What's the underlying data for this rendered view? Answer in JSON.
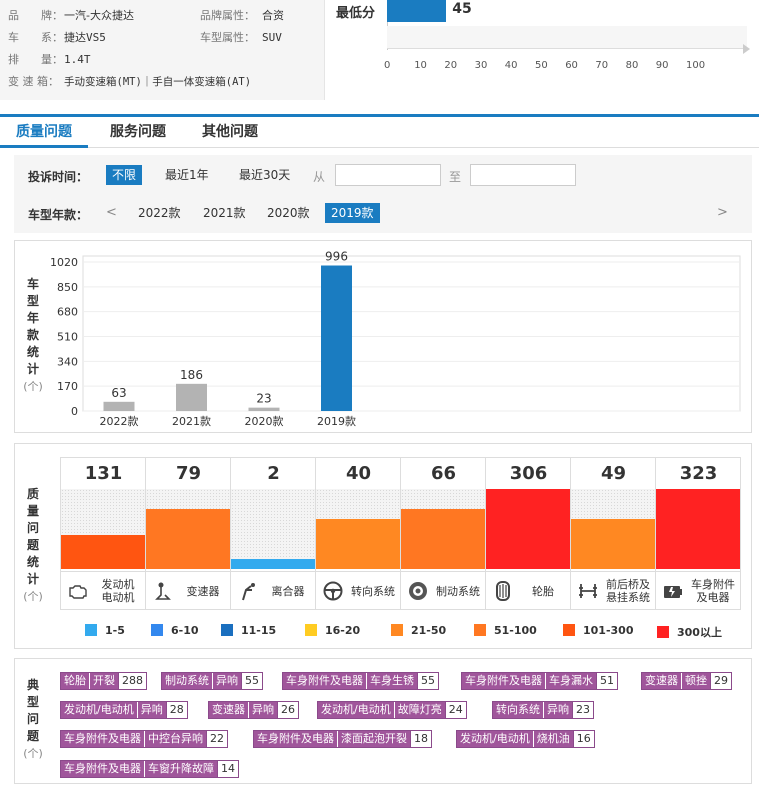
{
  "info": {
    "brand_label": "品　　牌：",
    "brand": "一汽-大众捷达",
    "brand_attr_label": "品牌属性：",
    "brand_attr": "合资",
    "series_label": "车　　系：",
    "series": "捷达VS5",
    "type_label": "车型属性：",
    "type": "SUV",
    "displacement_label": "排　　量：",
    "displacement": "1.4T",
    "gearbox_label": "变 速 箱：",
    "gearbox": "手动变速箱(MT)｜手自一体变速箱(AT)"
  },
  "score_chart": {
    "label": "最低分",
    "value": 45,
    "max": 100,
    "ticks": [
      "0",
      "10",
      "20",
      "30",
      "40",
      "50",
      "60",
      "70",
      "80",
      "90",
      "100"
    ],
    "color": "#1a7cc1"
  },
  "tabs": [
    "质量问题",
    "服务问题",
    "其他问题"
  ],
  "filters": {
    "time_label": "投诉时间：",
    "time_options": [
      "不限",
      "最近1年",
      "最近30天"
    ],
    "from_label": "从",
    "to_label": "至",
    "year_label": "车型年款：",
    "prev": "<",
    "next": ">",
    "year_options": [
      "2022款",
      "2021款",
      "2020款",
      "2019款"
    ]
  },
  "year_panel": {
    "label_chars": [
      "车",
      "型",
      "年",
      "款",
      "统",
      "计"
    ],
    "unit": "(个)"
  },
  "chart_data": {
    "type": "bar",
    "categories": [
      "2022款",
      "2021款",
      "2020款",
      "2019款"
    ],
    "values": [
      63,
      186,
      23,
      996
    ],
    "ylim": [
      0,
      1020
    ],
    "yticks": [
      "0",
      "170",
      "340",
      "510",
      "680",
      "850",
      "1020"
    ],
    "colors": [
      "#b3b3b3",
      "#b3b3b3",
      "#b3b3b3",
      "#1a7cc1"
    ]
  },
  "quality_panel": {
    "label_chars": [
      "质",
      "量",
      "问",
      "题",
      "统",
      "计"
    ],
    "unit": "(个)",
    "items": [
      {
        "count": "131",
        "level": 0.43,
        "color": "#ff5511",
        "label": "发动机 电动机",
        "icon": "engine-icon"
      },
      {
        "count": "79",
        "level": 0.75,
        "color": "#ff7722",
        "label": "变速器",
        "icon": "gear-shift-icon"
      },
      {
        "count": "2",
        "level": 0.12,
        "color": "#33aaee",
        "label": "离合器",
        "icon": "clutch-icon"
      },
      {
        "count": "40",
        "level": 0.62,
        "color": "#ff8822",
        "label": "转向系统",
        "icon": "steering-wheel-icon"
      },
      {
        "count": "66",
        "level": 0.75,
        "color": "#ff7722",
        "label": "制动系统",
        "icon": "brake-disc-icon"
      },
      {
        "count": "306",
        "level": 1.0,
        "color": "#ff2222",
        "label": "轮胎",
        "icon": "tire-icon"
      },
      {
        "count": "49",
        "level": 0.62,
        "color": "#ff8822",
        "label": "前后桥及 悬挂系统",
        "icon": "suspension-icon"
      },
      {
        "count": "323",
        "level": 1.0,
        "color": "#ff2222",
        "label": "车身附件 及电器",
        "icon": "car-body-icon"
      }
    ]
  },
  "legend": [
    {
      "label": "1-5",
      "color": "#33aaee"
    },
    {
      "label": "6-10",
      "color": "#3388ee"
    },
    {
      "label": "11-15",
      "color": "#1a6fbf"
    },
    {
      "label": "16-20",
      "color": "#ffcc22"
    },
    {
      "label": "21-50",
      "color": "#ff8822"
    },
    {
      "label": "51-100",
      "color": "#ff7722"
    },
    {
      "label": "101-300",
      "color": "#ff5511"
    },
    {
      "label": "300以上",
      "color": "#ff2222"
    }
  ],
  "typical_panel": {
    "label_chars": [
      "典",
      "型",
      "问",
      "题"
    ],
    "unit": "(个)",
    "tags": [
      {
        "cat": "轮胎",
        "sub": "开裂",
        "n": "288"
      },
      {
        "cat": "制动系统",
        "sub": "异响",
        "n": "55"
      },
      {
        "cat": "车身附件及电器",
        "sub": "车身生锈",
        "n": "55"
      },
      {
        "cat": "车身附件及电器",
        "sub": "车身漏水",
        "n": "51"
      },
      {
        "cat": "变速器",
        "sub": "顿挫",
        "n": "29"
      },
      {
        "cat": "发动机/电动机",
        "sub": "异响",
        "n": "28"
      },
      {
        "cat": "变速器",
        "sub": "异响",
        "n": "26"
      },
      {
        "cat": "发动机/电动机",
        "sub": "故障灯亮",
        "n": "24"
      },
      {
        "cat": "转向系统",
        "sub": "异响",
        "n": "23"
      },
      {
        "cat": "车身附件及电器",
        "sub": "中控台异响",
        "n": "22"
      },
      {
        "cat": "车身附件及电器",
        "sub": "漆面起泡开裂",
        "n": "18"
      },
      {
        "cat": "发动机/电动机",
        "sub": "烧机油",
        "n": "16"
      },
      {
        "cat": "车身附件及电器",
        "sub": "车窗升降故障",
        "n": "14"
      }
    ]
  }
}
